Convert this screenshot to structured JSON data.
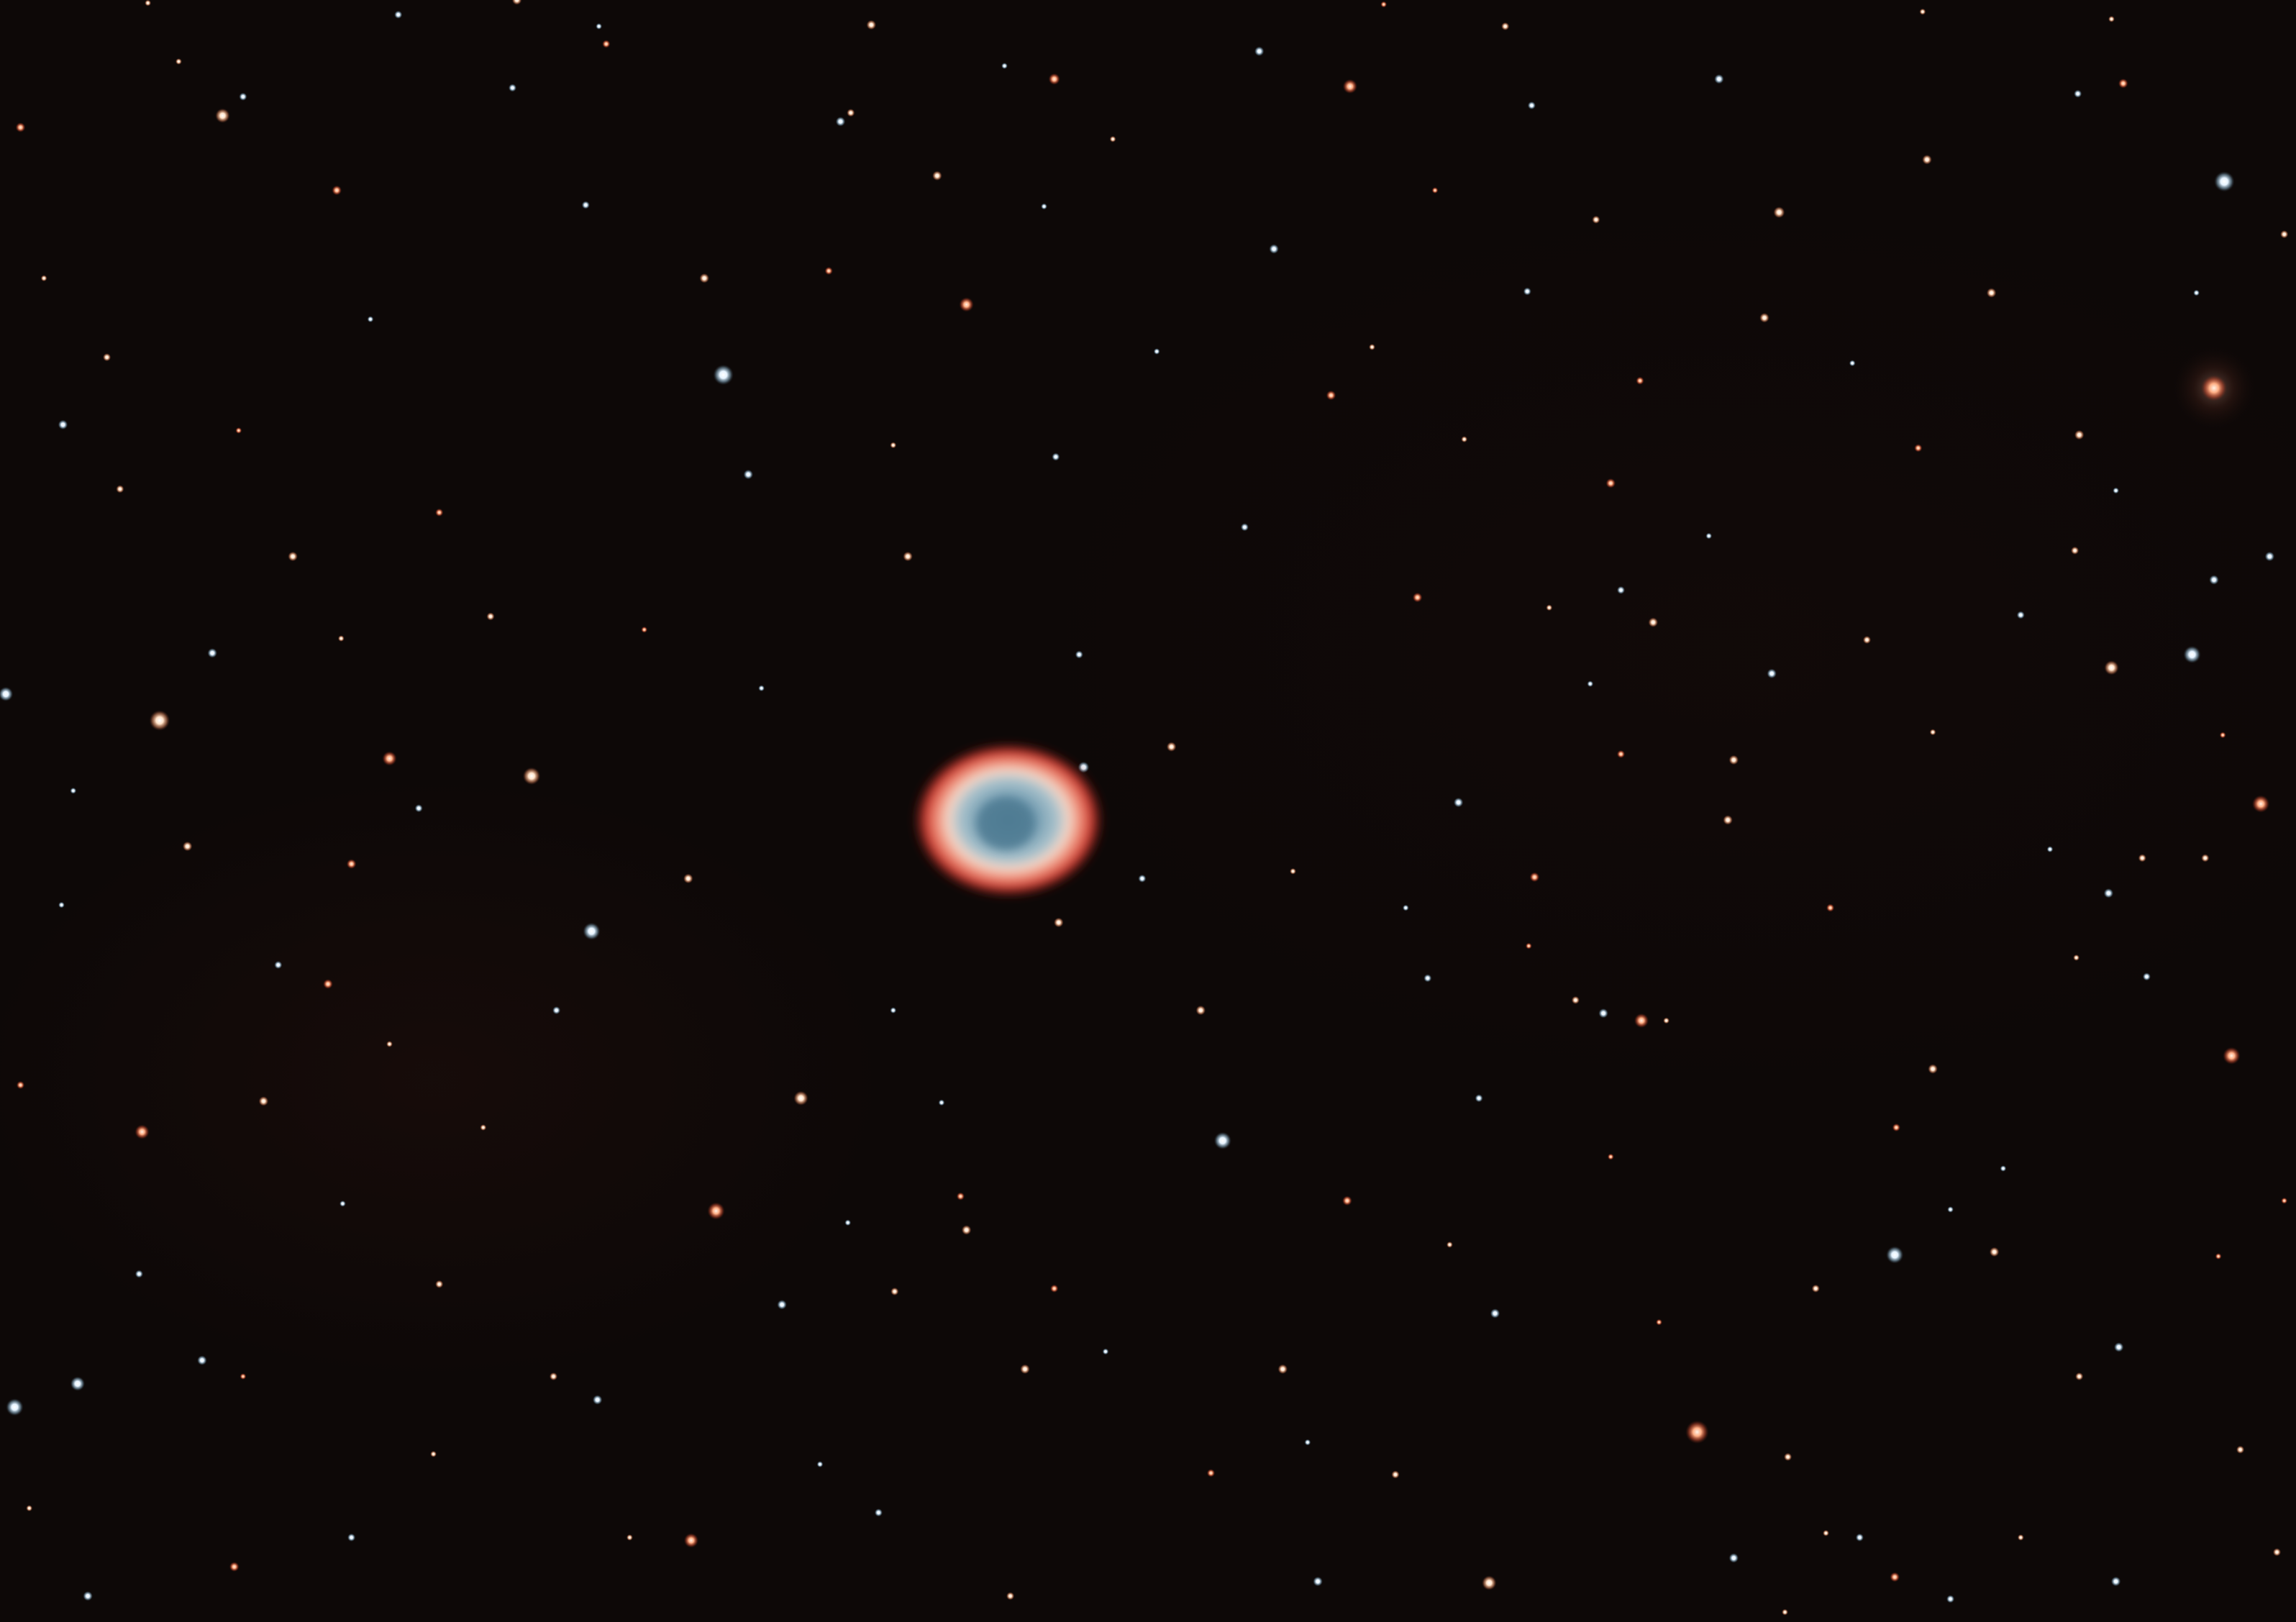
{
  "image": {
    "subject": "ring nebula",
    "colors": {
      "background": "#0d0807",
      "ring_outer": "#d8473c",
      "ring_mid": "#f0c9b8",
      "ring_inner": "#5f8fa8",
      "star_warm": "#ffd7b0",
      "star_cool": "#dff0ff",
      "star_red": "#ff8a66"
    }
  }
}
